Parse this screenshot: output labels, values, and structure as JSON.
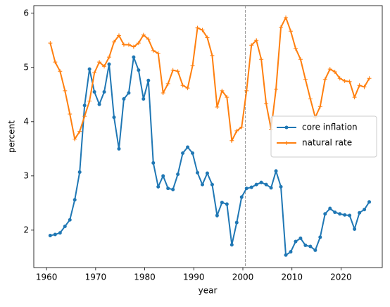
{
  "chart_data": {
    "type": "line",
    "x": [
      1960.75,
      1961.75,
      1962.75,
      1963.75,
      1964.75,
      1965.75,
      1966.75,
      1967.75,
      1968.75,
      1969.75,
      1970.75,
      1971.75,
      1972.75,
      1973.75,
      1974.75,
      1975.75,
      1976.75,
      1977.75,
      1978.75,
      1979.75,
      1980.75,
      1981.75,
      1982.75,
      1983.75,
      1984.75,
      1985.75,
      1986.75,
      1987.75,
      1988.75,
      1989.75,
      1990.75,
      1991.75,
      1992.75,
      1993.75,
      1994.75,
      1995.75,
      1996.75,
      1997.75,
      1998.75,
      1999.75,
      2000.75,
      2001.75,
      2002.75,
      2003.75,
      2004.75,
      2005.75,
      2006.75,
      2007.75,
      2008.75,
      2009.75,
      2010.75,
      2011.75,
      2012.75,
      2013.75,
      2014.75,
      2015.75,
      2016.75,
      2017.75,
      2018.75,
      2019.75,
      2020.75,
      2021.75,
      2022.75,
      2023.75,
      2024.75,
      2025.75
    ],
    "series": [
      {
        "name": "core inflation",
        "color": "#1f77b4",
        "marker": "circle",
        "values": [
          1.9,
          1.92,
          1.95,
          2.07,
          2.19,
          2.56,
          3.07,
          4.3,
          4.97,
          4.55,
          4.32,
          4.55,
          5.06,
          4.08,
          3.5,
          4.42,
          4.53,
          5.19,
          4.95,
          4.42,
          4.76,
          3.24,
          2.8,
          3.0,
          2.77,
          2.75,
          3.03,
          3.42,
          3.53,
          3.42,
          3.06,
          2.84,
          3.05,
          2.84,
          2.27,
          2.51,
          2.48,
          1.73,
          2.14,
          2.61,
          2.77,
          2.79,
          2.84,
          2.88,
          2.84,
          2.78,
          3.09,
          2.8,
          1.54,
          1.6,
          1.79,
          1.85,
          1.72,
          1.7,
          1.63,
          1.87,
          2.3,
          2.4,
          2.33,
          2.3,
          2.28,
          2.27,
          2.02,
          2.32,
          2.38,
          2.52
        ]
      },
      {
        "name": "natural rate",
        "color": "#ff7f0e",
        "marker": "plus",
        "values": [
          5.45,
          5.1,
          4.93,
          4.57,
          4.14,
          3.68,
          3.82,
          4.1,
          4.38,
          4.9,
          5.1,
          5.02,
          5.19,
          5.47,
          5.59,
          5.42,
          5.42,
          5.38,
          5.45,
          5.6,
          5.52,
          5.31,
          5.26,
          4.53,
          4.7,
          4.95,
          4.93,
          4.67,
          4.62,
          5.03,
          5.73,
          5.69,
          5.55,
          5.22,
          4.27,
          4.57,
          4.45,
          3.65,
          3.83,
          3.9,
          4.57,
          5.41,
          5.5,
          5.15,
          4.33,
          3.86,
          4.6,
          5.74,
          5.92,
          5.67,
          5.35,
          5.15,
          4.78,
          4.42,
          4.08,
          4.28,
          4.78,
          4.97,
          4.92,
          4.8,
          4.75,
          4.74,
          4.45,
          4.67,
          4.64,
          4.8
        ]
      }
    ],
    "xlabel": "year",
    "ylabel": "percent",
    "xlim": [
      1957.4,
      2028.4
    ],
    "ylim": [
      1.31,
      6.14
    ],
    "xticks": [
      1960,
      1970,
      1980,
      1990,
      2000,
      2010,
      2020
    ],
    "yticks": [
      2,
      3,
      4,
      5,
      6
    ],
    "vline": {
      "x": 2000.5,
      "color": "#999999"
    },
    "legend": "center right"
  }
}
